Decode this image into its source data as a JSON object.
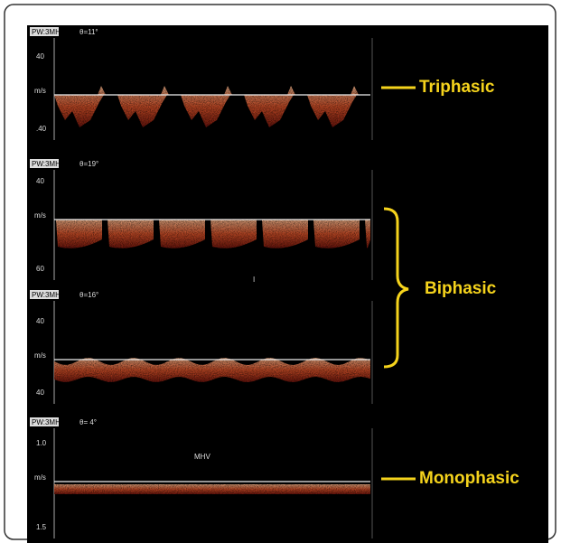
{
  "panels": [
    {
      "mode": "PW:3MHz",
      "angle": "θ=11°",
      "axis_top": "40",
      "axis_unit": "m/s",
      "axis_bottom": ".40"
    },
    {
      "mode": "PW:3MHz",
      "angle": "θ=19°",
      "axis_top": "40",
      "axis_unit": "m/s",
      "axis_bottom": "60",
      "marker": "I"
    },
    {
      "mode": "PW:3MHz",
      "angle": "θ=16°",
      "axis_top": "40",
      "axis_unit": "m/s",
      "axis_bottom": "40"
    },
    {
      "mode": "PW:3MHz",
      "angle": "θ= 4°",
      "axis_top": "1.0",
      "axis_unit": "m/s",
      "axis_bottom": "1.5",
      "vessel": "MHV"
    }
  ],
  "annotations": {
    "triphasic": "Triphasic",
    "biphasic": "Biphasic",
    "monophasic": "Monophasic"
  }
}
